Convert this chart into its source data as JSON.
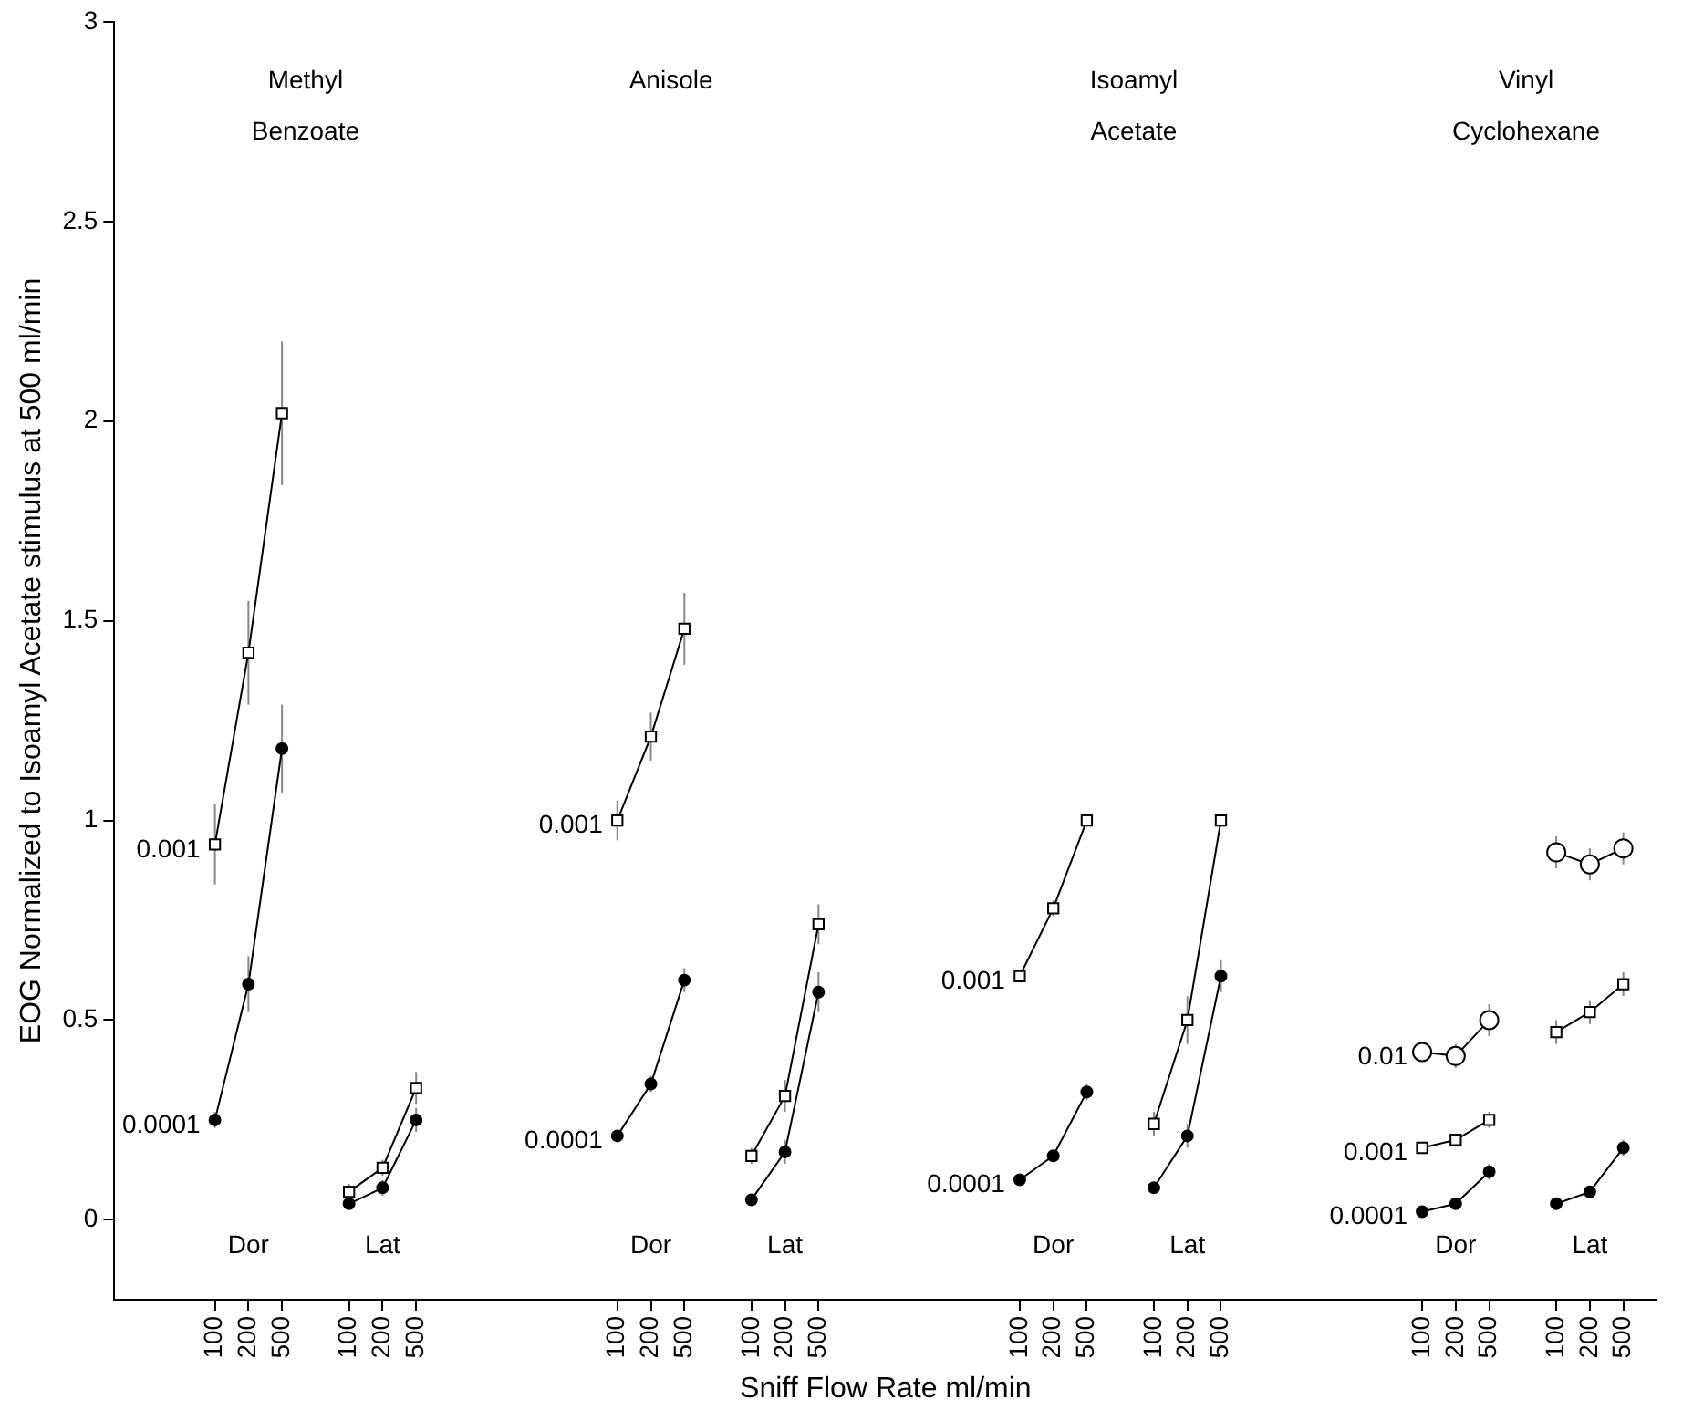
{
  "chart_data": {
    "type": "line",
    "xlabel": "Sniff Flow Rate ml/min",
    "ylabel": "EOG Normalized to Isoamyl Acetate stimulus at 500 ml/min",
    "categories": [
      null,
      null,
      null,
      "100",
      "200",
      "500",
      null,
      "100",
      "200",
      "500",
      null,
      null,
      null,
      null,
      null,
      "100",
      "200",
      "500",
      null,
      "100",
      "200",
      "500",
      null,
      null,
      null,
      null,
      null,
      "100",
      "200",
      "500",
      null,
      "100",
      "200",
      "500",
      null,
      null,
      null,
      null,
      null,
      "100",
      "200",
      "500",
      null,
      "100",
      "200",
      "500",
      null
    ],
    "ylim": [
      -0.2,
      3
    ],
    "yticks": [
      0,
      0.5,
      1,
      1.5,
      2,
      2.5,
      3
    ],
    "grid": false,
    "legend": false,
    "line_style": "solid",
    "annotations": [
      "Methyl Benzoate",
      "Anisole",
      "Isoamyl Acetate",
      "Vinyl Cyclohexane",
      "Dor",
      "Lat",
      "Dor",
      "Lat",
      "Dor",
      "Lat",
      "Dor",
      "Lat"
    ],
    "series": [
      {
        "name": "0.001",
        "color": "#000000",
        "marker": "square",
        "values": [
          null,
          null,
          null,
          0.94,
          1.42,
          2.02,
          null,
          null,
          null,
          null,
          null,
          null,
          null,
          null,
          null,
          null,
          null,
          null,
          null,
          null,
          null,
          null,
          null,
          null,
          null,
          null,
          null,
          null,
          null,
          null,
          null,
          null,
          null,
          null,
          null,
          null,
          null,
          null,
          null,
          null,
          null,
          null,
          null,
          null,
          null,
          null,
          null
        ],
        "errors": [
          null,
          null,
          null,
          0.1,
          0.13,
          0.18,
          null,
          null,
          null,
          null,
          null,
          null,
          null,
          null,
          null,
          null,
          null,
          null,
          null,
          null,
          null,
          null,
          null,
          null,
          null,
          null,
          null,
          null,
          null,
          null,
          null,
          null,
          null,
          null,
          null,
          null,
          null,
          null,
          null,
          null,
          null,
          null,
          null,
          null,
          null,
          null,
          null
        ]
      },
      {
        "name": "0.0001",
        "color": "#000000",
        "marker": "circle",
        "values": [
          null,
          null,
          null,
          0.25,
          0.59,
          1.18,
          null,
          null,
          null,
          null,
          null,
          null,
          null,
          null,
          null,
          null,
          null,
          null,
          null,
          null,
          null,
          null,
          null,
          null,
          null,
          null,
          null,
          null,
          null,
          null,
          null,
          null,
          null,
          null,
          null,
          null,
          null,
          null,
          null,
          null,
          null,
          null,
          null,
          null,
          null,
          null,
          null
        ],
        "errors": [
          null,
          null,
          null,
          0.02,
          0.07,
          0.11,
          null,
          null,
          null,
          null,
          null,
          null,
          null,
          null,
          null,
          null,
          null,
          null,
          null,
          null,
          null,
          null,
          null,
          null,
          null,
          null,
          null,
          null,
          null,
          null,
          null,
          null,
          null,
          null,
          null,
          null,
          null,
          null,
          null,
          null,
          null,
          null,
          null,
          null,
          null,
          null,
          null
        ]
      },
      {
        "color": "#000000",
        "marker": "square",
        "values": [
          null,
          null,
          null,
          null,
          null,
          null,
          null,
          0.07,
          0.13,
          0.33,
          null,
          null,
          null,
          null,
          null,
          null,
          null,
          null,
          null,
          null,
          null,
          null,
          null,
          null,
          null,
          null,
          null,
          null,
          null,
          null,
          null,
          null,
          null,
          null,
          null,
          null,
          null,
          null,
          null,
          null,
          null,
          null,
          null,
          null,
          null,
          null,
          null
        ],
        "errors": [
          null,
          null,
          null,
          null,
          null,
          null,
          null,
          0.02,
          0.02,
          0.04,
          null,
          null,
          null,
          null,
          null,
          null,
          null,
          null,
          null,
          null,
          null,
          null,
          null,
          null,
          null,
          null,
          null,
          null,
          null,
          null,
          null,
          null,
          null,
          null,
          null,
          null,
          null,
          null,
          null,
          null,
          null,
          null,
          null,
          null,
          null,
          null,
          null
        ]
      },
      {
        "color": "#000000",
        "marker": "circle",
        "values": [
          null,
          null,
          null,
          null,
          null,
          null,
          null,
          0.04,
          0.08,
          0.25,
          null,
          null,
          null,
          null,
          null,
          null,
          null,
          null,
          null,
          null,
          null,
          null,
          null,
          null,
          null,
          null,
          null,
          null,
          null,
          null,
          null,
          null,
          null,
          null,
          null,
          null,
          null,
          null,
          null,
          null,
          null,
          null,
          null,
          null,
          null,
          null,
          null
        ],
        "errors": [
          null,
          null,
          null,
          null,
          null,
          null,
          null,
          0.01,
          0.02,
          0.03,
          null,
          null,
          null,
          null,
          null,
          null,
          null,
          null,
          null,
          null,
          null,
          null,
          null,
          null,
          null,
          null,
          null,
          null,
          null,
          null,
          null,
          null,
          null,
          null,
          null,
          null,
          null,
          null,
          null,
          null,
          null,
          null,
          null,
          null,
          null,
          null,
          null
        ]
      },
      {
        "name": "0.001",
        "color": "#000000",
        "marker": "square",
        "values": [
          null,
          null,
          null,
          null,
          null,
          null,
          null,
          null,
          null,
          null,
          null,
          null,
          null,
          null,
          null,
          1.0,
          1.21,
          1.48,
          null,
          null,
          null,
          null,
          null,
          null,
          null,
          null,
          null,
          null,
          null,
          null,
          null,
          null,
          null,
          null,
          null,
          null,
          null,
          null,
          null,
          null,
          null,
          null,
          null,
          null,
          null,
          null,
          null
        ],
        "errors": [
          null,
          null,
          null,
          null,
          null,
          null,
          null,
          null,
          null,
          null,
          null,
          null,
          null,
          null,
          null,
          0.05,
          0.06,
          0.09,
          null,
          null,
          null,
          null,
          null,
          null,
          null,
          null,
          null,
          null,
          null,
          null,
          null,
          null,
          null,
          null,
          null,
          null,
          null,
          null,
          null,
          null,
          null,
          null,
          null,
          null,
          null,
          null,
          null
        ]
      },
      {
        "name": "0.0001",
        "color": "#000000",
        "marker": "circle",
        "values": [
          null,
          null,
          null,
          null,
          null,
          null,
          null,
          null,
          null,
          null,
          null,
          null,
          null,
          null,
          null,
          0.21,
          0.34,
          0.6,
          null,
          null,
          null,
          null,
          null,
          null,
          null,
          null,
          null,
          null,
          null,
          null,
          null,
          null,
          null,
          null,
          null,
          null,
          null,
          null,
          null,
          null,
          null,
          null,
          null,
          null,
          null,
          null,
          null
        ],
        "errors": [
          null,
          null,
          null,
          null,
          null,
          null,
          null,
          null,
          null,
          null,
          null,
          null,
          null,
          null,
          null,
          0.01,
          0.02,
          0.03,
          null,
          null,
          null,
          null,
          null,
          null,
          null,
          null,
          null,
          null,
          null,
          null,
          null,
          null,
          null,
          null,
          null,
          null,
          null,
          null,
          null,
          null,
          null,
          null,
          null,
          null,
          null,
          null,
          null
        ]
      },
      {
        "color": "#000000",
        "marker": "square",
        "values": [
          null,
          null,
          null,
          null,
          null,
          null,
          null,
          null,
          null,
          null,
          null,
          null,
          null,
          null,
          null,
          null,
          null,
          null,
          null,
          0.16,
          0.31,
          0.74,
          null,
          null,
          null,
          null,
          null,
          null,
          null,
          null,
          null,
          null,
          null,
          null,
          null,
          null,
          null,
          null,
          null,
          null,
          null,
          null,
          null,
          null,
          null,
          null,
          null
        ],
        "errors": [
          null,
          null,
          null,
          null,
          null,
          null,
          null,
          null,
          null,
          null,
          null,
          null,
          null,
          null,
          null,
          null,
          null,
          null,
          null,
          0.02,
          0.04,
          0.05,
          null,
          null,
          null,
          null,
          null,
          null,
          null,
          null,
          null,
          null,
          null,
          null,
          null,
          null,
          null,
          null,
          null,
          null,
          null,
          null,
          null,
          null,
          null,
          null,
          null
        ]
      },
      {
        "color": "#000000",
        "marker": "circle",
        "values": [
          null,
          null,
          null,
          null,
          null,
          null,
          null,
          null,
          null,
          null,
          null,
          null,
          null,
          null,
          null,
          null,
          null,
          null,
          null,
          0.05,
          0.17,
          0.57,
          null,
          null,
          null,
          null,
          null,
          null,
          null,
          null,
          null,
          null,
          null,
          null,
          null,
          null,
          null,
          null,
          null,
          null,
          null,
          null,
          null,
          null,
          null,
          null,
          null
        ],
        "errors": [
          null,
          null,
          null,
          null,
          null,
          null,
          null,
          null,
          null,
          null,
          null,
          null,
          null,
          null,
          null,
          null,
          null,
          null,
          null,
          0.01,
          0.03,
          0.05,
          null,
          null,
          null,
          null,
          null,
          null,
          null,
          null,
          null,
          null,
          null,
          null,
          null,
          null,
          null,
          null,
          null,
          null,
          null,
          null,
          null,
          null,
          null,
          null,
          null
        ]
      },
      {
        "name": "0.001",
        "color": "#000000",
        "marker": "square",
        "values": [
          null,
          null,
          null,
          null,
          null,
          null,
          null,
          null,
          null,
          null,
          null,
          null,
          null,
          null,
          null,
          null,
          null,
          null,
          null,
          null,
          null,
          null,
          null,
          null,
          null,
          null,
          null,
          0.61,
          0.78,
          1.0,
          null,
          null,
          null,
          null,
          null,
          null,
          null,
          null,
          null,
          null,
          null,
          null,
          null,
          null,
          null,
          null,
          null
        ],
        "errors": [
          null,
          null,
          null,
          null,
          null,
          null,
          null,
          null,
          null,
          null,
          null,
          null,
          null,
          null,
          null,
          null,
          null,
          null,
          null,
          null,
          null,
          null,
          null,
          null,
          null,
          null,
          null,
          0.01,
          0.02,
          0.01,
          null,
          null,
          null,
          null,
          null,
          null,
          null,
          null,
          null,
          null,
          null,
          null,
          null,
          null,
          null,
          null,
          null
        ]
      },
      {
        "name": "0.0001",
        "color": "#000000",
        "marker": "circle",
        "values": [
          null,
          null,
          null,
          null,
          null,
          null,
          null,
          null,
          null,
          null,
          null,
          null,
          null,
          null,
          null,
          null,
          null,
          null,
          null,
          null,
          null,
          null,
          null,
          null,
          null,
          null,
          null,
          0.1,
          0.16,
          0.32,
          null,
          null,
          null,
          null,
          null,
          null,
          null,
          null,
          null,
          null,
          null,
          null,
          null,
          null,
          null,
          null,
          null
        ],
        "errors": [
          null,
          null,
          null,
          null,
          null,
          null,
          null,
          null,
          null,
          null,
          null,
          null,
          null,
          null,
          null,
          null,
          null,
          null,
          null,
          null,
          null,
          null,
          null,
          null,
          null,
          null,
          null,
          0.01,
          0.01,
          0.02,
          null,
          null,
          null,
          null,
          null,
          null,
          null,
          null,
          null,
          null,
          null,
          null,
          null,
          null,
          null,
          null,
          null
        ]
      },
      {
        "color": "#000000",
        "marker": "square",
        "values": [
          null,
          null,
          null,
          null,
          null,
          null,
          null,
          null,
          null,
          null,
          null,
          null,
          null,
          null,
          null,
          null,
          null,
          null,
          null,
          null,
          null,
          null,
          null,
          null,
          null,
          null,
          null,
          null,
          null,
          null,
          null,
          0.24,
          0.5,
          1.0,
          null,
          null,
          null,
          null,
          null,
          null,
          null,
          null,
          null,
          null,
          null,
          null,
          null
        ],
        "errors": [
          null,
          null,
          null,
          null,
          null,
          null,
          null,
          null,
          null,
          null,
          null,
          null,
          null,
          null,
          null,
          null,
          null,
          null,
          null,
          null,
          null,
          null,
          null,
          null,
          null,
          null,
          null,
          null,
          null,
          null,
          null,
          0.03,
          0.06,
          0.01,
          null,
          null,
          null,
          null,
          null,
          null,
          null,
          null,
          null,
          null,
          null,
          null,
          null
        ]
      },
      {
        "color": "#000000",
        "marker": "circle",
        "values": [
          null,
          null,
          null,
          null,
          null,
          null,
          null,
          null,
          null,
          null,
          null,
          null,
          null,
          null,
          null,
          null,
          null,
          null,
          null,
          null,
          null,
          null,
          null,
          null,
          null,
          null,
          null,
          null,
          null,
          null,
          null,
          0.08,
          0.21,
          0.61,
          null,
          null,
          null,
          null,
          null,
          null,
          null,
          null,
          null,
          null,
          null,
          null,
          null
        ],
        "errors": [
          null,
          null,
          null,
          null,
          null,
          null,
          null,
          null,
          null,
          null,
          null,
          null,
          null,
          null,
          null,
          null,
          null,
          null,
          null,
          null,
          null,
          null,
          null,
          null,
          null,
          null,
          null,
          null,
          null,
          null,
          null,
          0.01,
          0.03,
          0.04,
          null,
          null,
          null,
          null,
          null,
          null,
          null,
          null,
          null,
          null,
          null,
          null,
          null
        ]
      },
      {
        "name": "0.01",
        "color": "#000000",
        "marker": "circle",
        "values": [
          null,
          null,
          null,
          null,
          null,
          null,
          null,
          null,
          null,
          null,
          null,
          null,
          null,
          null,
          null,
          null,
          null,
          null,
          null,
          null,
          null,
          null,
          null,
          null,
          null,
          null,
          null,
          null,
          null,
          null,
          null,
          null,
          null,
          null,
          null,
          null,
          null,
          null,
          null,
          0.42,
          0.41,
          0.5,
          null,
          null,
          null,
          null,
          null
        ],
        "errors": [
          null,
          null,
          null,
          null,
          null,
          null,
          null,
          null,
          null,
          null,
          null,
          null,
          null,
          null,
          null,
          null,
          null,
          null,
          null,
          null,
          null,
          null,
          null,
          null,
          null,
          null,
          null,
          null,
          null,
          null,
          null,
          null,
          null,
          null,
          null,
          null,
          null,
          null,
          null,
          0.02,
          0.03,
          0.04,
          null,
          null,
          null,
          null,
          null
        ]
      },
      {
        "name": "0.001",
        "color": "#000000",
        "marker": "square",
        "values": [
          null,
          null,
          null,
          null,
          null,
          null,
          null,
          null,
          null,
          null,
          null,
          null,
          null,
          null,
          null,
          null,
          null,
          null,
          null,
          null,
          null,
          null,
          null,
          null,
          null,
          null,
          null,
          null,
          null,
          null,
          null,
          null,
          null,
          null,
          null,
          null,
          null,
          null,
          null,
          0.18,
          0.2,
          0.25,
          null,
          null,
          null,
          null,
          null
        ],
        "errors": [
          null,
          null,
          null,
          null,
          null,
          null,
          null,
          null,
          null,
          null,
          null,
          null,
          null,
          null,
          null,
          null,
          null,
          null,
          null,
          null,
          null,
          null,
          null,
          null,
          null,
          null,
          null,
          null,
          null,
          null,
          null,
          null,
          null,
          null,
          null,
          null,
          null,
          null,
          null,
          0.01,
          0.01,
          0.02,
          null,
          null,
          null,
          null,
          null
        ]
      },
      {
        "name": "0.0001",
        "color": "#000000",
        "marker": "circle",
        "values": [
          null,
          null,
          null,
          null,
          null,
          null,
          null,
          null,
          null,
          null,
          null,
          null,
          null,
          null,
          null,
          null,
          null,
          null,
          null,
          null,
          null,
          null,
          null,
          null,
          null,
          null,
          null,
          null,
          null,
          null,
          null,
          null,
          null,
          null,
          null,
          null,
          null,
          null,
          null,
          0.02,
          0.04,
          0.12,
          null,
          null,
          null,
          null,
          null
        ],
        "errors": [
          null,
          null,
          null,
          null,
          null,
          null,
          null,
          null,
          null,
          null,
          null,
          null,
          null,
          null,
          null,
          null,
          null,
          null,
          null,
          null,
          null,
          null,
          null,
          null,
          null,
          null,
          null,
          null,
          null,
          null,
          null,
          null,
          null,
          null,
          null,
          null,
          null,
          null,
          null,
          0.01,
          0.01,
          0.02,
          null,
          null,
          null,
          null,
          null
        ]
      },
      {
        "color": "#000000",
        "marker": "circle",
        "values": [
          null,
          null,
          null,
          null,
          null,
          null,
          null,
          null,
          null,
          null,
          null,
          null,
          null,
          null,
          null,
          null,
          null,
          null,
          null,
          null,
          null,
          null,
          null,
          null,
          null,
          null,
          null,
          null,
          null,
          null,
          null,
          null,
          null,
          null,
          null,
          null,
          null,
          null,
          null,
          null,
          null,
          null,
          null,
          0.92,
          0.89,
          0.93,
          null
        ],
        "errors": [
          null,
          null,
          null,
          null,
          null,
          null,
          null,
          null,
          null,
          null,
          null,
          null,
          null,
          null,
          null,
          null,
          null,
          null,
          null,
          null,
          null,
          null,
          null,
          null,
          null,
          null,
          null,
          null,
          null,
          null,
          null,
          null,
          null,
          null,
          null,
          null,
          null,
          null,
          null,
          null,
          null,
          null,
          null,
          0.04,
          0.04,
          0.04,
          null
        ]
      },
      {
        "color": "#000000",
        "marker": "square",
        "values": [
          null,
          null,
          null,
          null,
          null,
          null,
          null,
          null,
          null,
          null,
          null,
          null,
          null,
          null,
          null,
          null,
          null,
          null,
          null,
          null,
          null,
          null,
          null,
          null,
          null,
          null,
          null,
          null,
          null,
          null,
          null,
          null,
          null,
          null,
          null,
          null,
          null,
          null,
          null,
          null,
          null,
          null,
          null,
          0.47,
          0.52,
          0.59,
          null
        ],
        "errors": [
          null,
          null,
          null,
          null,
          null,
          null,
          null,
          null,
          null,
          null,
          null,
          null,
          null,
          null,
          null,
          null,
          null,
          null,
          null,
          null,
          null,
          null,
          null,
          null,
          null,
          null,
          null,
          null,
          null,
          null,
          null,
          null,
          null,
          null,
          null,
          null,
          null,
          null,
          null,
          null,
          null,
          null,
          null,
          0.03,
          0.03,
          0.03,
          null
        ]
      },
      {
        "color": "#000000",
        "marker": "circle",
        "values": [
          null,
          null,
          null,
          null,
          null,
          null,
          null,
          null,
          null,
          null,
          null,
          null,
          null,
          null,
          null,
          null,
          null,
          null,
          null,
          null,
          null,
          null,
          null,
          null,
          null,
          null,
          null,
          null,
          null,
          null,
          null,
          null,
          null,
          null,
          null,
          null,
          null,
          null,
          null,
          null,
          null,
          null,
          null,
          0.04,
          0.07,
          0.18,
          null
        ],
        "errors": [
          null,
          null,
          null,
          null,
          null,
          null,
          null,
          null,
          null,
          null,
          null,
          null,
          null,
          null,
          null,
          null,
          null,
          null,
          null,
          null,
          null,
          null,
          null,
          null,
          null,
          null,
          null,
          null,
          null,
          null,
          null,
          null,
          null,
          null,
          null,
          null,
          null,
          null,
          null,
          null,
          null,
          null,
          null,
          0.01,
          0.01,
          0.02,
          null
        ]
      }
    ]
  }
}
